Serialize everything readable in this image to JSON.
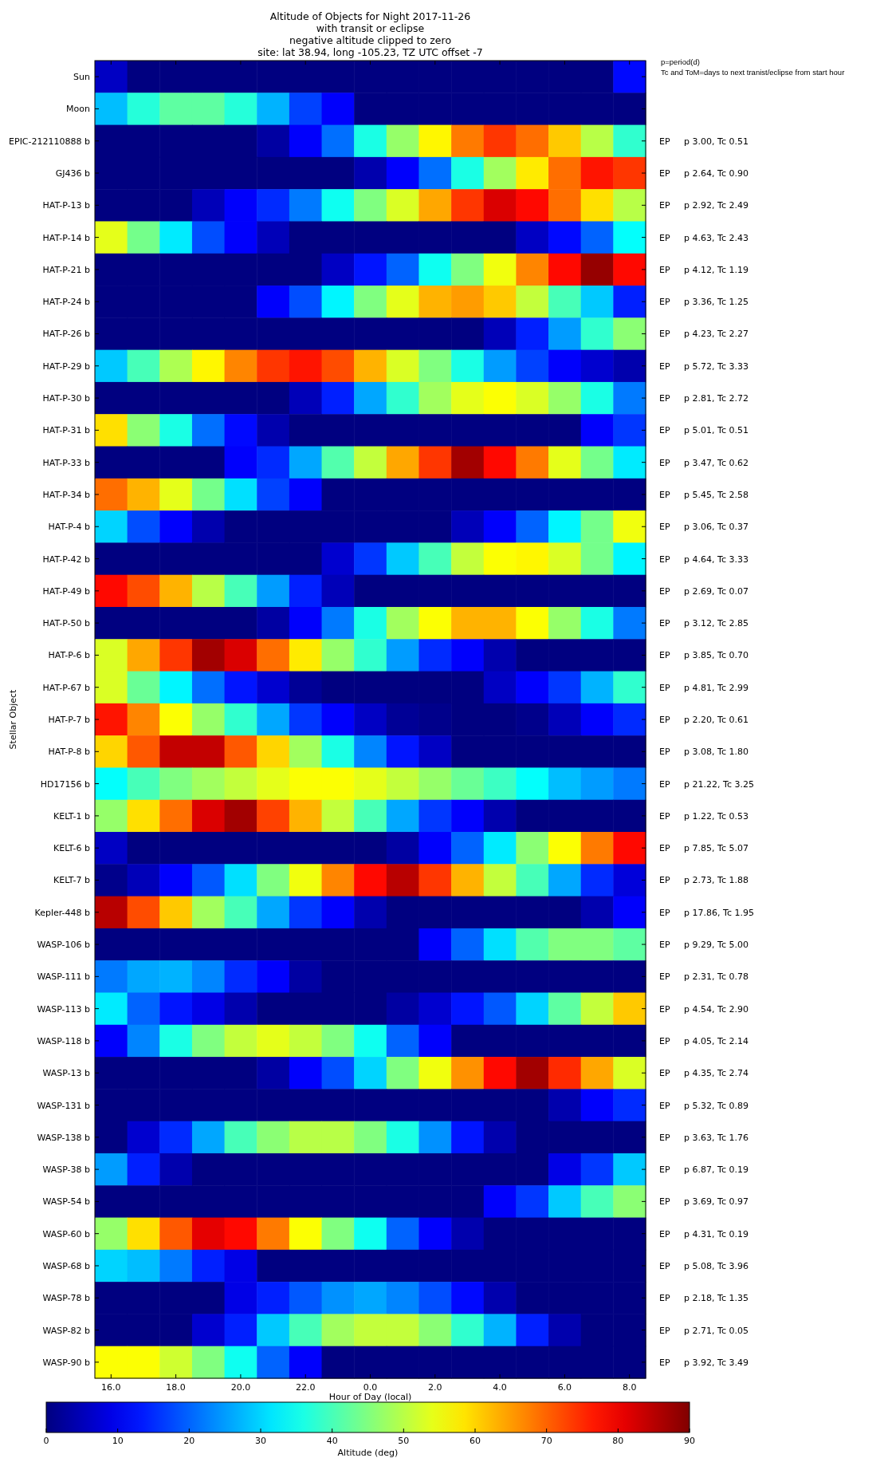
{
  "chart_data": {
    "type": "heatmap",
    "title": "Altitude of Objects for Night 2017-11-26\nwith transit or eclipse\nnegative altitude clipped to zero\nsite: lat 38.94, long -105.23, TZ UTC offset -7",
    "xlabel": "Hour of Day (local)",
    "ylabel": "Stellar Object",
    "clabel": "Altitude (deg)",
    "annotations": [
      "p=period(d)\nTc and ToM=days to next tranist/eclipse from start hour"
    ],
    "x": [
      "2017-11-26T16:00",
      "2017-11-26T17:00",
      "2017-11-26T18:00",
      "2017-11-26T19:00",
      "2017-11-26T20:00",
      "2017-11-26T21:00",
      "2017-11-26T22:00",
      "2017-11-26T23:00",
      "2017-11-27T00:00",
      "2017-11-27T01:00",
      "2017-11-27T02:00",
      "2017-11-27T03:00",
      "2017-11-27T04:00",
      "2017-11-27T05:00",
      "2017-11-27T06:00",
      "2017-11-27T07:00",
      "2017-11-27T08:00"
    ],
    "xlim": [
      "2017-11-26T15:30",
      "2017-11-27T08:30"
    ],
    "xticks": [
      {
        "value": "2017-11-26T16:00",
        "label": "16.0"
      },
      {
        "value": "2017-11-26T18:00",
        "label": "18.0"
      },
      {
        "value": "2017-11-26T20:00",
        "label": "20.0"
      },
      {
        "value": "2017-11-26T22:00",
        "label": "22.0"
      },
      {
        "value": "2017-11-27T00:00",
        "label": "0.0"
      },
      {
        "value": "2017-11-27T02:00",
        "label": "2.0"
      },
      {
        "value": "2017-11-27T04:00",
        "label": "4.0"
      },
      {
        "value": "2017-11-27T06:00",
        "label": "6.0"
      },
      {
        "value": "2017-11-27T08:00",
        "label": "8.0"
      }
    ],
    "y_categories": [
      "Sun",
      "Moon",
      "EPIC-212110888 b",
      "GJ436 b",
      "HAT-P-13 b",
      "HAT-P-14 b",
      "HAT-P-21 b",
      "HAT-P-24 b",
      "HAT-P-26 b",
      "HAT-P-29 b",
      "HAT-P-30 b",
      "HAT-P-31 b",
      "HAT-P-33 b",
      "HAT-P-34 b",
      "HAT-P-4 b",
      "HAT-P-42 b",
      "HAT-P-49 b",
      "HAT-P-50 b",
      "HAT-P-6 b",
      "HAT-P-67 b",
      "HAT-P-7 b",
      "HAT-P-8 b",
      "HD17156 b",
      "KELT-1 b",
      "KELT-6 b",
      "KELT-7 b",
      "Kepler-448 b",
      "WASP-106 b",
      "WASP-111 b",
      "WASP-113 b",
      "WASP-118 b",
      "WASP-13 b",
      "WASP-131 b",
      "WASP-138 b",
      "WASP-38 b",
      "WASP-54 b",
      "WASP-60 b",
      "WASP-68 b",
      "WASP-78 b",
      "WASP-82 b",
      "WASP-90 b"
    ],
    "y2_categories": [
      null,
      null,
      "EP     p 3.00, Tc 0.51",
      "EP     p 2.64, Tc 0.90",
      "EP     p 2.92, Tc 2.49",
      "EP     p 4.63, Tc 2.43",
      "EP     p 4.12, Tc 1.19",
      "EP     p 3.36, Tc 1.25",
      "EP     p 4.23, Tc 2.27",
      "EP     p 5.72, Tc 3.33",
      "EP     p 2.81, Tc 2.72",
      "EP     p 5.01, Tc 0.51",
      "EP     p 3.47, Tc 0.62",
      "EP     p 5.45, Tc 2.58",
      "EP     p 3.06, Tc 0.37",
      "EP     p 4.64, Tc 3.33",
      "EP     p 2.69, Tc 0.07",
      "EP     p 3.12, Tc 2.85",
      "EP     p 3.85, Tc 0.70",
      "EP     p 4.81, Tc 2.99",
      "EP     p 2.20, Tc 0.61",
      "EP     p 3.08, Tc 1.80",
      "EP     p 21.22, Tc 3.25",
      "EP     p 1.22, Tc 0.53",
      "EP     p 7.85, Tc 5.07",
      "EP     p 2.73, Tc 1.88",
      "EP     p 17.86, Tc 1.95",
      "EP     p 9.29, Tc 5.00",
      "EP     p 2.31, Tc 0.78",
      "EP     p 4.54, Tc 2.90",
      "EP     p 4.05, Tc 2.14",
      "EP     p 4.35, Tc 2.74",
      "EP     p 5.32, Tc 0.89",
      "EP     p 3.63, Tc 1.76",
      "EP     p 6.87, Tc 0.19",
      "EP     p 3.69, Tc 0.97",
      "EP     p 4.31, Tc 0.19",
      "EP     p 5.08, Tc 3.96",
      "EP     p 2.18, Tc 1.35",
      "EP     p 2.71, Tc 0.05",
      "EP     p 3.92, Tc 3.49"
    ],
    "cells": [
      [
        6,
        0,
        0,
        0,
        0,
        0,
        0,
        0,
        0,
        0,
        0,
        0,
        0,
        0,
        0,
        0,
        12
      ],
      [
        28,
        37,
        42,
        42,
        37,
        27,
        17,
        11,
        0,
        0,
        0,
        0,
        0,
        0,
        0,
        0,
        0
      ],
      [
        0,
        0,
        0,
        0,
        0,
        3,
        11,
        21,
        36,
        47,
        57,
        68,
        74,
        69,
        61,
        50,
        38
      ],
      [
        0,
        0,
        0,
        0,
        0,
        0,
        0,
        0,
        4,
        11,
        21,
        36,
        48,
        58,
        69,
        77,
        74
      ],
      [
        0,
        0,
        0,
        5,
        11,
        15,
        22,
        35,
        45,
        53,
        64,
        74,
        82,
        78,
        69,
        59,
        50
      ],
      [
        54,
        44,
        32,
        18,
        11,
        5,
        0,
        0,
        0,
        0,
        0,
        0,
        0,
        6,
        12,
        20,
        34
      ],
      [
        0,
        0,
        0,
        0,
        0,
        0,
        0,
        6,
        13,
        20,
        35,
        45,
        55,
        67,
        78,
        88,
        78
      ],
      [
        0,
        0,
        0,
        0,
        0,
        11,
        18,
        33,
        45,
        54,
        63,
        65,
        61,
        51,
        40,
        29,
        14
      ],
      [
        0,
        0,
        0,
        0,
        0,
        0,
        0,
        0,
        0,
        0,
        0,
        0,
        5,
        14,
        25,
        38,
        46
      ],
      [
        29,
        40,
        49,
        57,
        67,
        74,
        77,
        72,
        63,
        53,
        45,
        36,
        25,
        17,
        11,
        7,
        4
      ],
      [
        0,
        0,
        0,
        0,
        0,
        0,
        5,
        14,
        26,
        38,
        48,
        54,
        56,
        53,
        47,
        36,
        22
      ],
      [
        59,
        46,
        36,
        21,
        12,
        4,
        0,
        0,
        0,
        0,
        0,
        0,
        0,
        0,
        0,
        11,
        16
      ],
      [
        0,
        0,
        0,
        0,
        11,
        15,
        26,
        41,
        51,
        64,
        74,
        87,
        78,
        68,
        54,
        44,
        32
      ],
      [
        69,
        63,
        54,
        44,
        31,
        17,
        11,
        0,
        0,
        0,
        0,
        0,
        0,
        0,
        0,
        0,
        0
      ],
      [
        30,
        18,
        11,
        4,
        0,
        0,
        0,
        0,
        0,
        0,
        0,
        5,
        11,
        20,
        33,
        44,
        55
      ],
      [
        0,
        0,
        0,
        0,
        0,
        0,
        0,
        7,
        16,
        29,
        40,
        51,
        56,
        57,
        53,
        44,
        33
      ],
      [
        78,
        72,
        63,
        50,
        40,
        25,
        14,
        5,
        0,
        0,
        0,
        0,
        0,
        0,
        0,
        0,
        0
      ],
      [
        0,
        0,
        0,
        0,
        0,
        3,
        11,
        22,
        36,
        48,
        56,
        63,
        63,
        56,
        47,
        36,
        22
      ],
      [
        53,
        64,
        74,
        87,
        82,
        69,
        58,
        47,
        38,
        25,
        15,
        11,
        4,
        0,
        0,
        0,
        0
      ],
      [
        53,
        43,
        33,
        21,
        13,
        7,
        2,
        0,
        0,
        0,
        0,
        0,
        6,
        11,
        16,
        27,
        38
      ],
      [
        77,
        67,
        56,
        47,
        38,
        26,
        16,
        11,
        6,
        2,
        1,
        0,
        0,
        1,
        5,
        11,
        15
      ],
      [
        60,
        71,
        84,
        84,
        71,
        60,
        48,
        36,
        23,
        13,
        6,
        0,
        0,
        0,
        0,
        0,
        0
      ],
      [
        34,
        40,
        45,
        48,
        51,
        54,
        56,
        56,
        54,
        51,
        47,
        43,
        39,
        34,
        28,
        25,
        22
      ],
      [
        47,
        59,
        69,
        82,
        87,
        73,
        63,
        51,
        40,
        26,
        16,
        11,
        4,
        0,
        0,
        0,
        0
      ],
      [
        6,
        0,
        0,
        0,
        0,
        0,
        0,
        0,
        0,
        3,
        11,
        20,
        32,
        46,
        56,
        68,
        78
      ],
      [
        1,
        5,
        11,
        19,
        31,
        45,
        55,
        67,
        78,
        85,
        74,
        63,
        51,
        40,
        26,
        15,
        8
      ],
      [
        85,
        72,
        61,
        48,
        40,
        26,
        16,
        11,
        4,
        0,
        0,
        0,
        0,
        0,
        0,
        4,
        11
      ],
      [
        0,
        0,
        0,
        0,
        0,
        0,
        0,
        0,
        0,
        0,
        11,
        20,
        31,
        41,
        45,
        45,
        42
      ],
      [
        22,
        26,
        27,
        23,
        15,
        11,
        3,
        0,
        0,
        0,
        0,
        0,
        0,
        0,
        0,
        0,
        0
      ],
      [
        32,
        20,
        13,
        9,
        4,
        0,
        0,
        0,
        0,
        3,
        7,
        13,
        19,
        30,
        42,
        51,
        61
      ],
      [
        11,
        23,
        36,
        45,
        51,
        54,
        51,
        45,
        35,
        20,
        11,
        0,
        0,
        0,
        0,
        0,
        0
      ],
      [
        0,
        0,
        0,
        0,
        0,
        3,
        11,
        18,
        30,
        45,
        55,
        66,
        78,
        87,
        75,
        64,
        53
      ],
      [
        0,
        0,
        0,
        0,
        0,
        0,
        0,
        0,
        0,
        0,
        0,
        0,
        0,
        0,
        4,
        11,
        15
      ],
      [
        0,
        7,
        15,
        26,
        40,
        46,
        50,
        50,
        45,
        36,
        24,
        13,
        4,
        0,
        0,
        0,
        0
      ],
      [
        25,
        14,
        4,
        0,
        0,
        0,
        0,
        0,
        0,
        0,
        0,
        0,
        0,
        0,
        9,
        16,
        29
      ],
      [
        0,
        0,
        0,
        0,
        0,
        0,
        0,
        0,
        0,
        0,
        0,
        0,
        11,
        16,
        29,
        40,
        46
      ],
      [
        47,
        59,
        71,
        81,
        78,
        68,
        56,
        45,
        35,
        20,
        11,
        4,
        0,
        0,
        0,
        0,
        0
      ],
      [
        30,
        28,
        22,
        14,
        9,
        0,
        0,
        0,
        0,
        0,
        0,
        0,
        0,
        0,
        0,
        0,
        0
      ],
      [
        0,
        0,
        0,
        0,
        9,
        14,
        19,
        24,
        26,
        23,
        18,
        12,
        4,
        0,
        0,
        0,
        0
      ],
      [
        0,
        0,
        0,
        7,
        14,
        29,
        40,
        48,
        51,
        51,
        46,
        38,
        27,
        14,
        4,
        0,
        0
      ],
      [
        56,
        56,
        52,
        45,
        35,
        20,
        11,
        0,
        0,
        0,
        0,
        0,
        0,
        0,
        0,
        0,
        0
      ]
    ],
    "clim": [
      0,
      90
    ],
    "cticks": [
      0,
      10,
      20,
      30,
      40,
      50,
      60,
      70,
      80,
      90
    ],
    "grid": false
  }
}
